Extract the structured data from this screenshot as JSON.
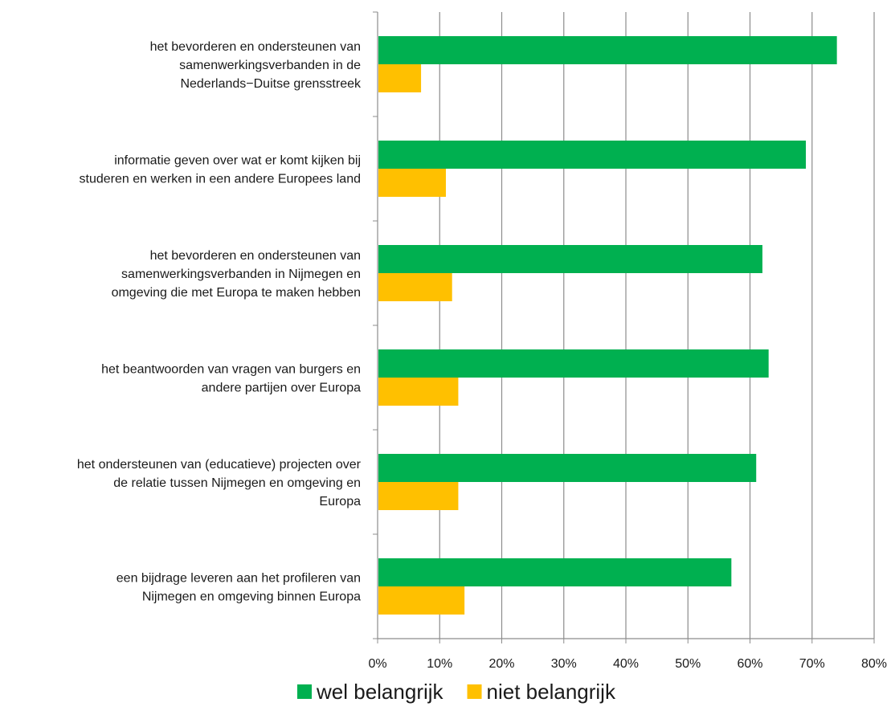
{
  "chart_data": {
    "type": "bar",
    "orientation": "horizontal",
    "categories": [
      [
        "het bevorderen en ondersteunen van",
        "samenwerkingsverbanden in de",
        "Nederlands−Duitse grensstreek"
      ],
      [
        "informatie geven over wat er komt kijken bij",
        "studeren en werken in een andere Europees land"
      ],
      [
        "het bevorderen en ondersteunen van",
        "samenwerkingsverbanden in Nijmegen en",
        "omgeving die met Europa te maken hebben"
      ],
      [
        "het beantwoorden van vragen van burgers en",
        "andere partijen over Europa"
      ],
      [
        "het ondersteunen van (educatieve) projecten over",
        "de relatie tussen Nijmegen en omgeving en",
        "Europa"
      ],
      [
        "een bijdrage leveren aan het profileren van",
        "Nijmegen en omgeving binnen Europa"
      ]
    ],
    "series": [
      {
        "name": "wel belangrijk",
        "color": "#00b050",
        "values": [
          74,
          69,
          62,
          63,
          61,
          57
        ]
      },
      {
        "name": "niet belangrijk",
        "color": "#ffc000",
        "values": [
          7,
          11,
          12,
          13,
          13,
          14
        ]
      }
    ],
    "xlim": [
      0,
      80
    ],
    "xticks": [
      "0%",
      "10%",
      "20%",
      "30%",
      "40%",
      "50%",
      "60%",
      "70%",
      "80%"
    ],
    "grid": true,
    "legend_position": "bottom",
    "title": "",
    "xlabel": "",
    "ylabel": ""
  }
}
